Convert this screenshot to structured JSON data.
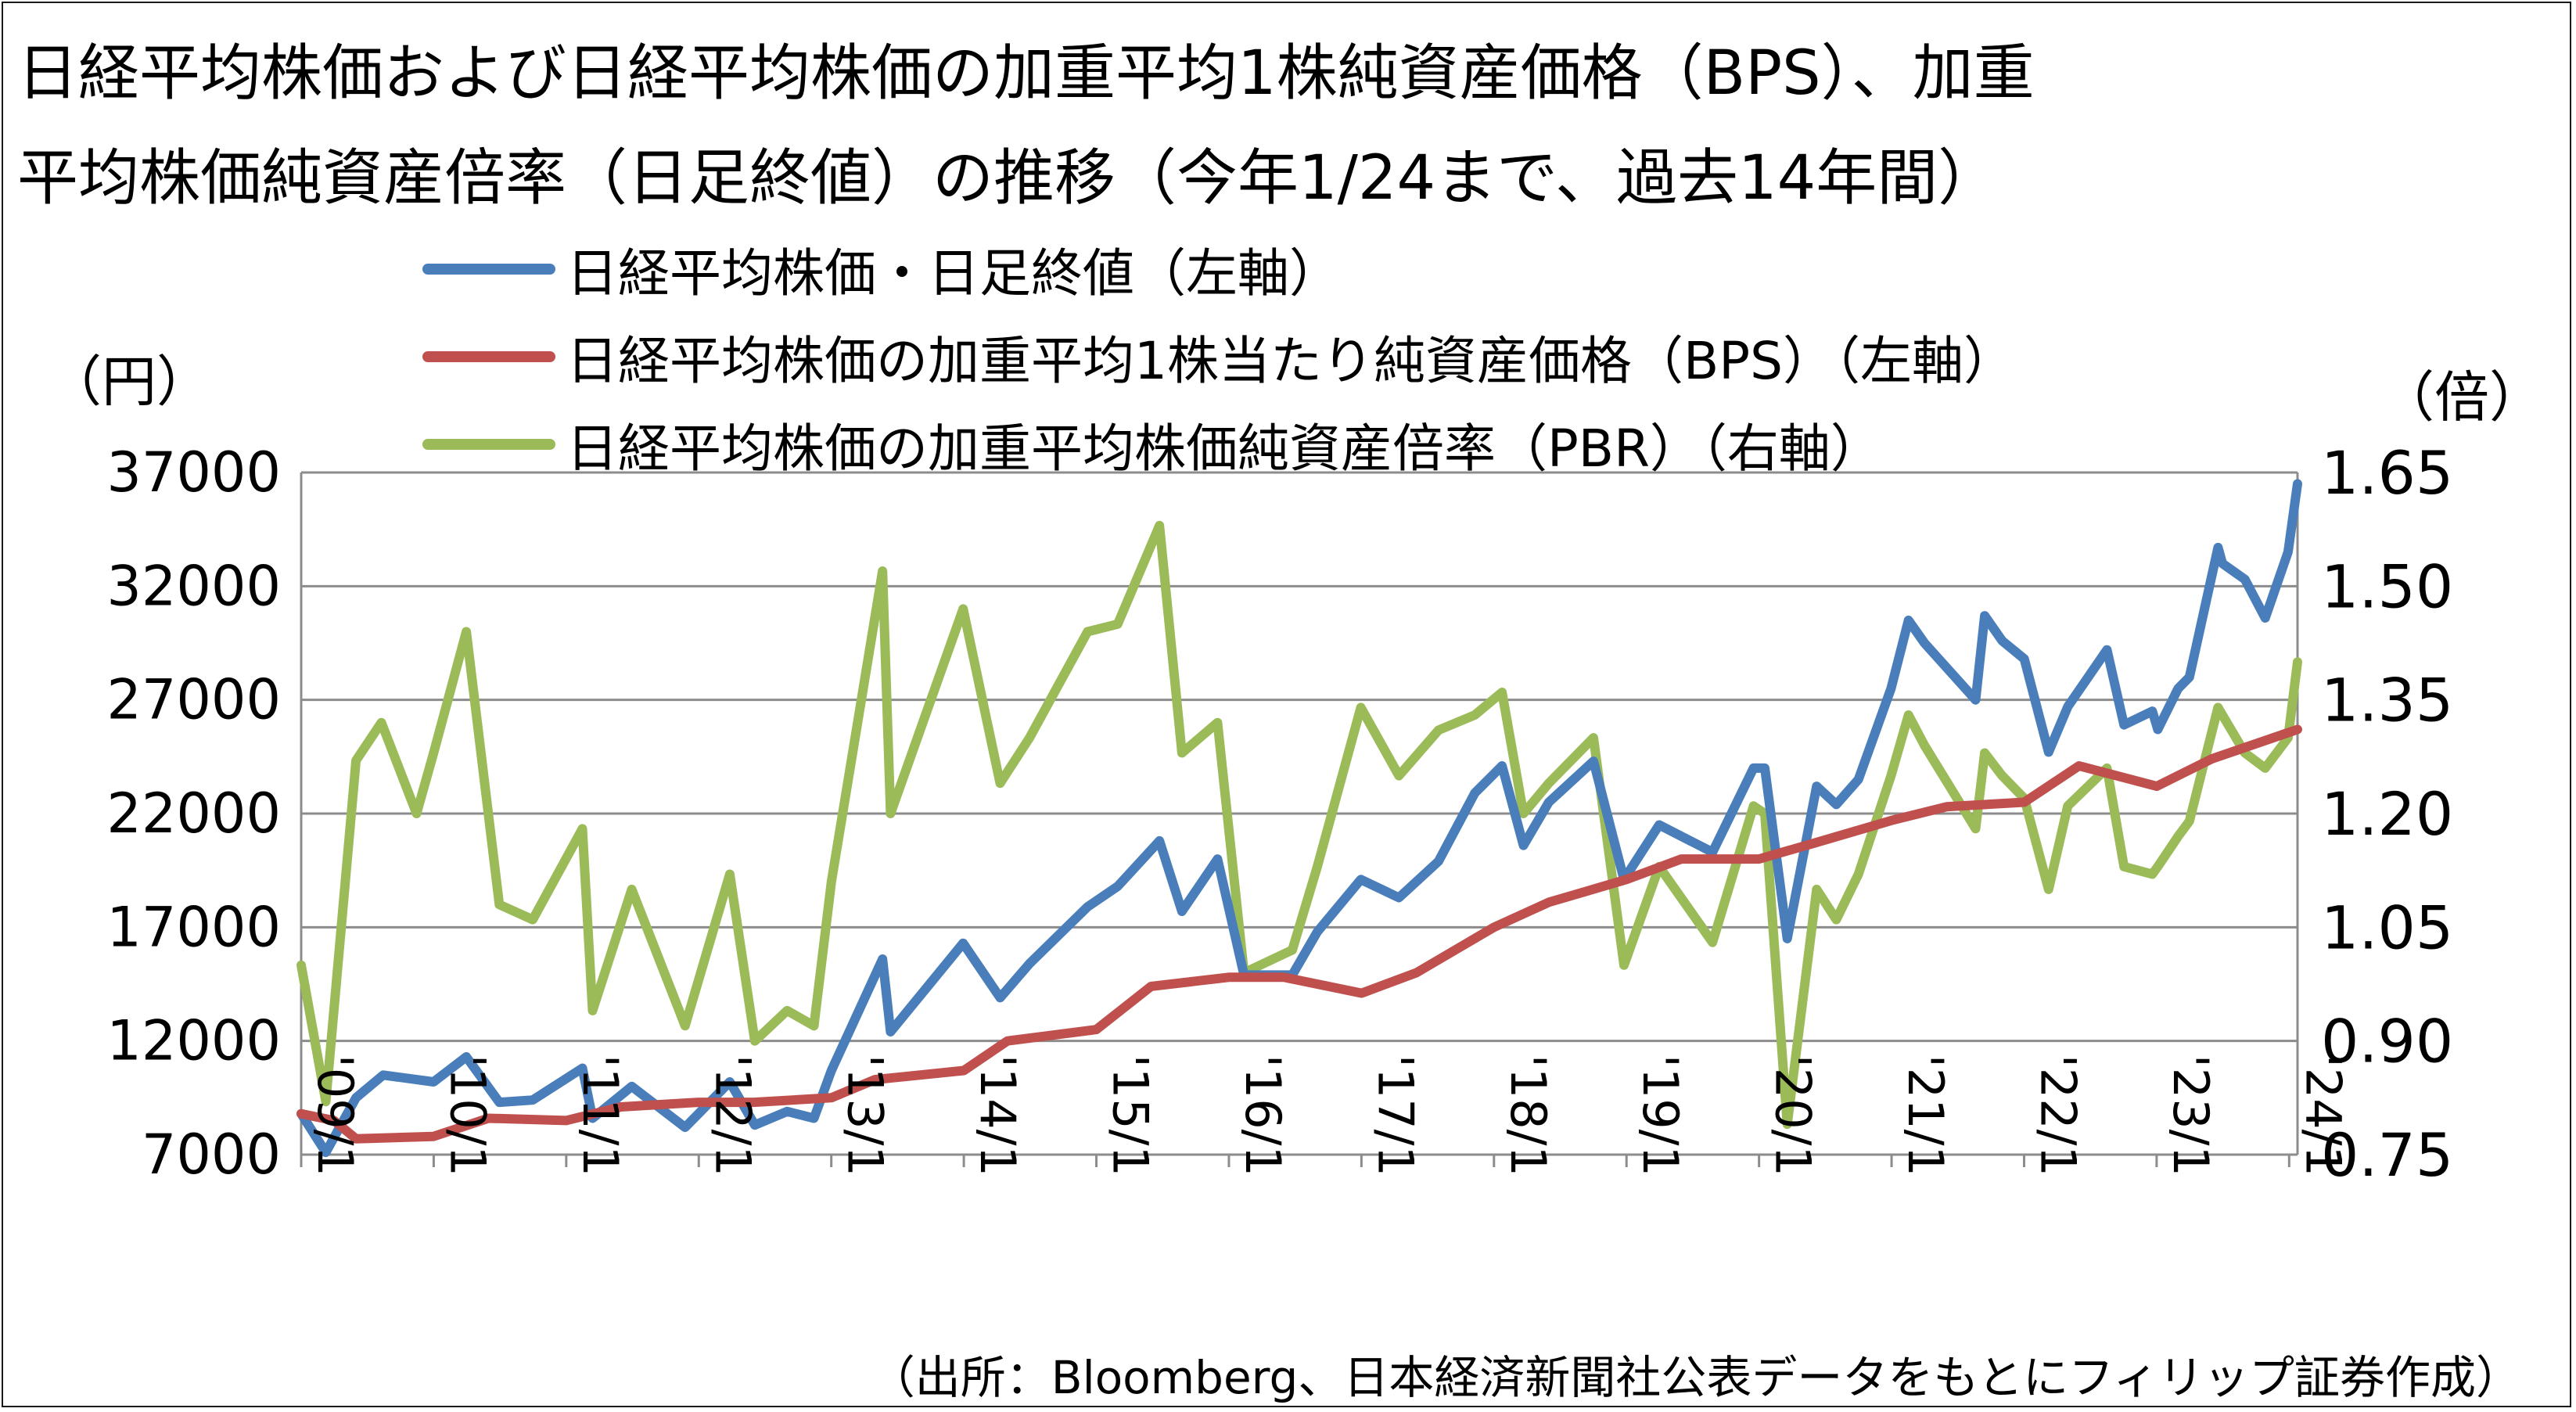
{
  "title_line1": "日経平均株価および日経平均株価の加重平均1株純資産価格（BPS）、加重",
  "title_line2": "平均株価純資産倍率（日足終値）の推移（今年1/24まで、過去14年間）",
  "source": "（出所：Bloomberg、日本経済新聞社公表データをもとにフィリップ証券作成）",
  "colors": {
    "nikkei": "#4a7ebb",
    "bps": "#c0504d",
    "pbr": "#9bbb59",
    "grid": "#8c8c8c"
  },
  "chart_data": {
    "type": "line",
    "left_unit": "（円）",
    "right_unit": "（倍）",
    "x_tick_labels": [
      "'09/1",
      "'10/1",
      "'11/1",
      "'12/1",
      "'13/1",
      "'14/1",
      "'15/1",
      "'16/1",
      "'17/1",
      "'18/1",
      "'19/1",
      "'20/1",
      "'21/1",
      "'22/1",
      "'23/1",
      "'24/1"
    ],
    "y_left": {
      "min": 7000,
      "max": 37000,
      "ticks": [
        7000,
        12000,
        17000,
        22000,
        27000,
        32000,
        37000
      ],
      "tick_labels": [
        "7000",
        "12000",
        "17000",
        "22000",
        "27000",
        "32000",
        "37000"
      ]
    },
    "y_right": {
      "min": 0.75,
      "max": 1.65,
      "ticks": [
        0.75,
        0.9,
        1.05,
        1.2,
        1.35,
        1.5,
        1.65
      ],
      "tick_labels": [
        "0.75",
        "0.90",
        "1.05",
        "1.20",
        "1.35",
        "1.50",
        "1.65"
      ]
    },
    "grid": "horizontal",
    "x_start": "2009-01-01",
    "x_end": "2024-01-24",
    "series": [
      {
        "name": "日経平均株価・日足終値（左軸）",
        "axis": "left",
        "color": "#4a7ebb",
        "x": [
          "2009-01-01",
          "2009-03-10",
          "2009-06-01",
          "2009-08-15",
          "2010-01-01",
          "2010-04-01",
          "2010-07-01",
          "2010-10-01",
          "2011-02-15",
          "2011-03-15",
          "2011-07-01",
          "2011-11-25",
          "2012-03-27",
          "2012-06-04",
          "2012-09-01",
          "2012-11-14",
          "2013-01-01",
          "2013-05-22",
          "2013-06-13",
          "2013-12-30",
          "2014-04-11",
          "2014-07-01",
          "2014-12-08",
          "2015-03-01",
          "2015-06-24",
          "2015-08-25",
          "2015-12-01",
          "2016-02-12",
          "2016-06-24",
          "2016-09-01",
          "2016-12-30",
          "2017-04-14",
          "2017-08-01",
          "2017-11-09",
          "2018-01-23",
          "2018-03-23",
          "2018-06-01",
          "2018-10-02",
          "2018-12-25",
          "2019-04-01",
          "2019-08-26",
          "2019-12-17",
          "2020-01-17",
          "2020-03-19",
          "2020-06-08",
          "2020-08-01",
          "2020-10-01",
          "2020-12-30",
          "2021-02-16",
          "2021-04-01",
          "2021-08-20",
          "2021-09-14",
          "2021-11-01",
          "2022-01-01",
          "2022-03-09",
          "2022-05-01",
          "2022-08-17",
          "2022-10-03",
          "2022-12-20",
          "2023-01-04",
          "2023-03-01",
          "2023-04-01",
          "2023-06-19",
          "2023-07-01",
          "2023-09-01",
          "2023-10-27",
          "2023-12-29",
          "2024-01-24"
        ],
        "y": [
          8800,
          7100,
          9500,
          10500,
          10200,
          11300,
          9300,
          9400,
          10800,
          8600,
          10000,
          8200,
          10200,
          8300,
          8900,
          8600,
          10700,
          15600,
          12400,
          16300,
          13900,
          15400,
          17900,
          18800,
          20800,
          17700,
          20000,
          14900,
          14900,
          16800,
          19100,
          18300,
          19900,
          22900,
          24100,
          20600,
          22500,
          24300,
          19100,
          21500,
          20300,
          24000,
          24000,
          16500,
          23200,
          22400,
          23500,
          27500,
          30500,
          29500,
          27000,
          30700,
          29600,
          28800,
          24700,
          26700,
          29200,
          25900,
          26500,
          25700,
          27500,
          28000,
          33700,
          33000,
          32300,
          30600,
          33500,
          36500
        ]
      },
      {
        "name": "日経平均株価の加重平均1株当たり純資産価格（BPS）（左軸）",
        "axis": "left",
        "color": "#c0504d",
        "x": [
          "2009-01-01",
          "2009-04-01",
          "2009-06-01",
          "2010-01-01",
          "2010-06-01",
          "2011-01-01",
          "2011-06-01",
          "2012-01-01",
          "2012-06-01",
          "2013-01-01",
          "2013-05-01",
          "2014-01-01",
          "2014-05-01",
          "2015-01-01",
          "2015-06-01",
          "2016-01-01",
          "2016-06-01",
          "2017-01-01",
          "2017-06-01",
          "2018-01-01",
          "2018-06-01",
          "2019-01-01",
          "2019-06-01",
          "2020-01-01",
          "2020-06-01",
          "2021-01-01",
          "2021-06-01",
          "2022-01-01",
          "2022-06-01",
          "2023-01-01",
          "2023-06-01",
          "2024-01-24"
        ],
        "y": [
          8800,
          8500,
          7700,
          7800,
          8600,
          8500,
          9100,
          9300,
          9300,
          9500,
          10300,
          10700,
          12000,
          12500,
          14400,
          14800,
          14800,
          14100,
          15000,
          17000,
          18100,
          19100,
          20000,
          20000,
          20700,
          21700,
          22300,
          22500,
          24100,
          23200,
          24400,
          25700
        ]
      },
      {
        "name": "日経平均株価の加重平均株価純資産倍率（PBR）（右軸）",
        "axis": "right",
        "color": "#9bbb59",
        "x": [
          "2009-01-01",
          "2009-03-10",
          "2009-06-01",
          "2009-08-10",
          "2009-11-15",
          "2010-01-01",
          "2010-04-01",
          "2010-07-01",
          "2010-10-01",
          "2011-02-15",
          "2011-03-15",
          "2011-07-01",
          "2011-11-25",
          "2012-03-27",
          "2012-06-04",
          "2012-09-01",
          "2012-11-14",
          "2013-01-01",
          "2013-05-22",
          "2013-06-13",
          "2013-12-30",
          "2014-04-11",
          "2014-07-01",
          "2014-12-08",
          "2015-03-01",
          "2015-06-24",
          "2015-08-25",
          "2015-12-01",
          "2016-02-12",
          "2016-06-24",
          "2016-09-01",
          "2016-12-30",
          "2017-04-14",
          "2017-08-01",
          "2017-11-09",
          "2018-01-23",
          "2018-03-23",
          "2018-06-01",
          "2018-10-02",
          "2018-12-25",
          "2019-04-01",
          "2019-08-26",
          "2019-12-17",
          "2020-01-17",
          "2020-03-19",
          "2020-06-08",
          "2020-08-01",
          "2020-10-01",
          "2020-12-30",
          "2021-02-16",
          "2021-04-01",
          "2021-08-20",
          "2021-09-14",
          "2021-11-01",
          "2022-01-01",
          "2022-03-09",
          "2022-05-01",
          "2022-08-17",
          "2022-10-03",
          "2022-12-20",
          "2023-01-04",
          "2023-03-01",
          "2023-04-01",
          "2023-06-19",
          "2023-07-01",
          "2023-09-01",
          "2023-10-27",
          "2023-12-29",
          "2024-01-24"
        ],
        "y": [
          1.0,
          0.82,
          1.27,
          1.32,
          1.2,
          1.28,
          1.44,
          1.08,
          1.06,
          1.18,
          0.94,
          1.1,
          0.92,
          1.12,
          0.9,
          0.94,
          0.92,
          1.11,
          1.52,
          1.2,
          1.47,
          1.24,
          1.3,
          1.44,
          1.45,
          1.58,
          1.28,
          1.32,
          0.99,
          1.02,
          1.13,
          1.34,
          1.25,
          1.31,
          1.33,
          1.36,
          1.2,
          1.24,
          1.3,
          1.0,
          1.13,
          1.03,
          1.21,
          1.2,
          0.79,
          1.1,
          1.06,
          1.12,
          1.25,
          1.33,
          1.29,
          1.18,
          1.28,
          1.25,
          1.22,
          1.1,
          1.21,
          1.26,
          1.13,
          1.12,
          1.13,
          1.17,
          1.19,
          1.34,
          1.33,
          1.28,
          1.26,
          1.3,
          1.4
        ]
      }
    ]
  }
}
